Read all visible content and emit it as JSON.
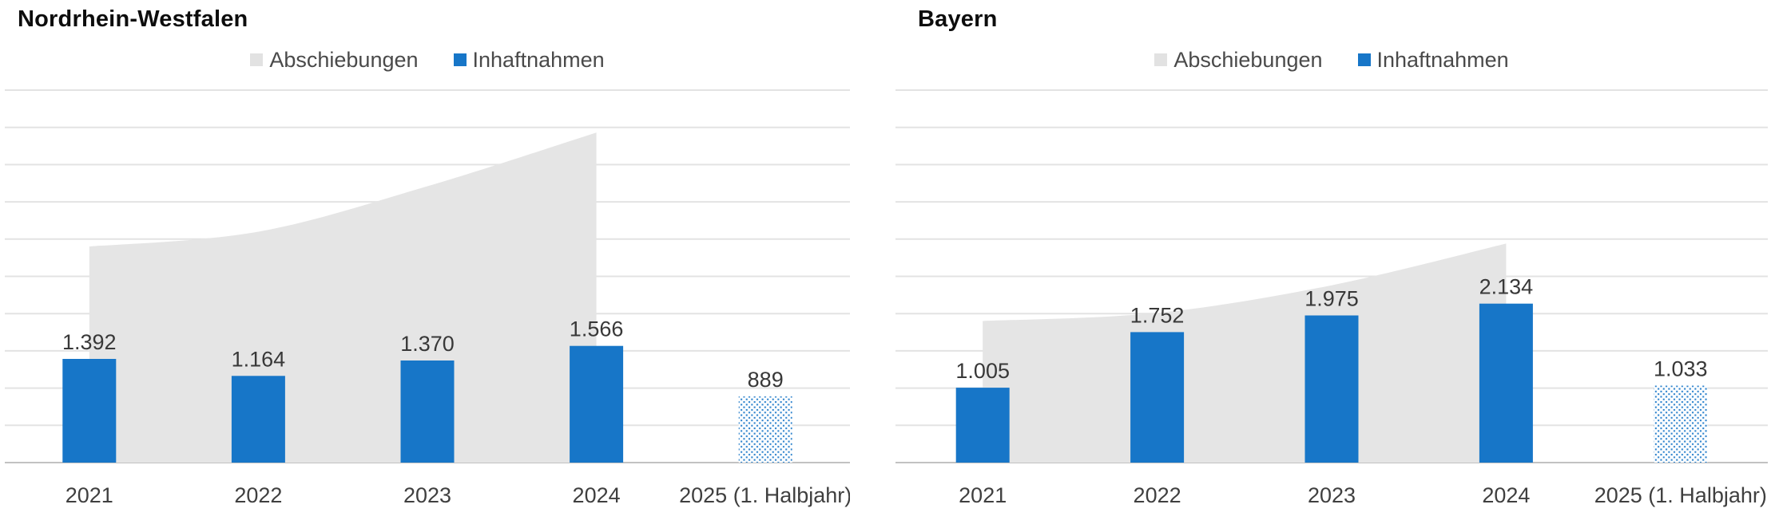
{
  "page": {
    "background": "#ffffff"
  },
  "colors": {
    "bar_blue": "#1776c8",
    "area_gray": "#e5e5e5",
    "legend_gray_swatch": "#e2e2e2",
    "gridline": "#e3e3e3",
    "axis_line": "#c2c2c2",
    "value_label_text": "#383838",
    "tick_label_text": "#3f3f3f",
    "legend_text": "#4a4a4a",
    "title_text": "#0d0d0d"
  },
  "y_axis": {
    "min": 0,
    "max": 5000,
    "step": 500,
    "tick_labels_visible": false
  },
  "chart_data": [
    {
      "type": "bar",
      "title": "Nordrhein-Westfalen",
      "categories": [
        "2021",
        "2022",
        "2023",
        "2024",
        "2025 (1. Halbjahr)"
      ],
      "series": [
        {
          "name": "Abschiebungen",
          "render": "area",
          "color": "#e5e5e5",
          "values": [
            2900,
            3100,
            3710,
            4430,
            null
          ],
          "estimated": true
        },
        {
          "name": "Inhaftnahmen",
          "render": "bar",
          "color": "#1776c8",
          "values": [
            1392,
            1164,
            1370,
            1566,
            889
          ],
          "value_labels": [
            "1.392",
            "1.164",
            "1.370",
            "1.566",
            "889"
          ],
          "last_bar_pattern": "dotted"
        }
      ],
      "ylim": [
        0,
        5000
      ],
      "grid": true,
      "legend_position": "top-center"
    },
    {
      "type": "bar",
      "title": "Bayern",
      "categories": [
        "2021",
        "2022",
        "2023",
        "2024",
        "2025 (1. Halbjahr)"
      ],
      "series": [
        {
          "name": "Abschiebungen",
          "render": "area",
          "color": "#e5e5e5",
          "values": [
            1900,
            2010,
            2380,
            2940,
            null
          ],
          "estimated": true
        },
        {
          "name": "Inhaftnahmen",
          "render": "bar",
          "color": "#1776c8",
          "values": [
            1005,
            1752,
            1975,
            2134,
            1033
          ],
          "value_labels": [
            "1.005",
            "1.752",
            "1.975",
            "2.134",
            "1.033"
          ],
          "last_bar_pattern": "dotted"
        }
      ],
      "ylim": [
        0,
        5000
      ],
      "grid": true,
      "legend_position": "top-center"
    }
  ]
}
